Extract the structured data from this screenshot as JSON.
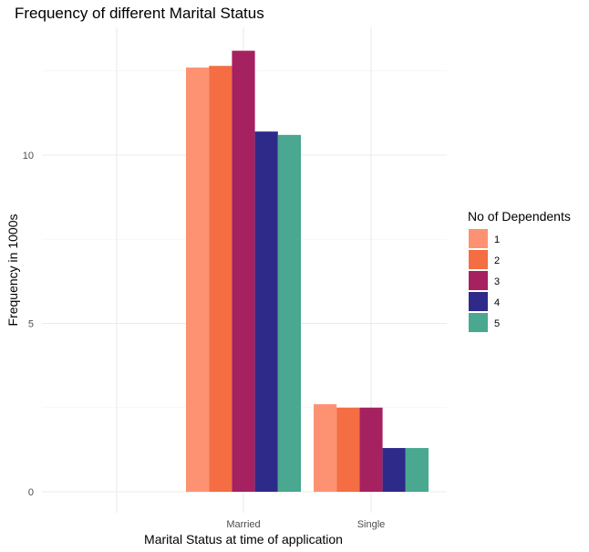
{
  "chart_data": {
    "type": "bar",
    "title": "Frequency of different Marital Status",
    "xlabel": "Marital Status at time of application",
    "ylabel": "Frequency in 1000s",
    "categories": [
      "",
      "Married",
      "Single"
    ],
    "yticks": [
      "0",
      "5",
      "10"
    ],
    "ylim": [
      0,
      13.6
    ],
    "grid": true,
    "legend": {
      "title": "No of Dependents",
      "position": "right"
    },
    "series": [
      {
        "name": "1",
        "color": "#fc9272",
        "values": [
          0,
          12.6,
          2.6
        ]
      },
      {
        "name": "2",
        "color": "#f46d43",
        "values": [
          0,
          12.65,
          2.5
        ]
      },
      {
        "name": "3",
        "color": "#a6215f",
        "values": [
          0,
          13.1,
          2.5
        ]
      },
      {
        "name": "4",
        "color": "#2e2a8a",
        "values": [
          0,
          10.7,
          1.3
        ]
      },
      {
        "name": "5",
        "color": "#49a88f",
        "values": [
          0,
          10.6,
          1.3
        ]
      }
    ]
  }
}
